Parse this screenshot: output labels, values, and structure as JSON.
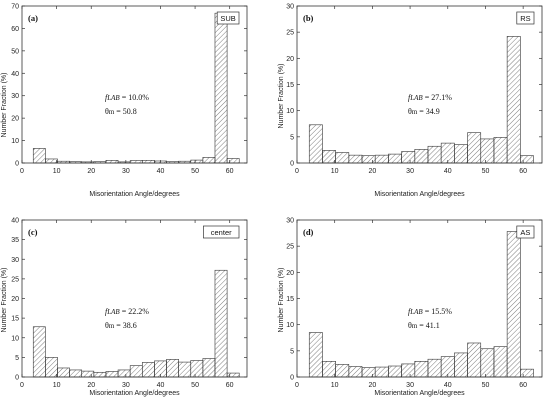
{
  "chart_data": [
    {
      "type": "bar",
      "panel_label": "(a)",
      "condition": "SUB",
      "xlabel": "Misorientation Angle/degrees",
      "ylabel": "Number Fraction (%)",
      "xlim": [
        0,
        65
      ],
      "ylim": [
        0,
        70
      ],
      "xticks": [
        0,
        10,
        20,
        30,
        40,
        50,
        60
      ],
      "yticks": [
        0,
        10,
        20,
        30,
        40,
        50,
        60,
        70
      ],
      "bin_width": 3.5,
      "x": [
        5,
        8.5,
        12,
        15.5,
        19,
        22.5,
        26,
        29.5,
        33,
        36.5,
        40,
        43.5,
        47,
        50.5,
        54,
        57.5,
        61
      ],
      "values": [
        6.5,
        1.8,
        0.8,
        0.6,
        0.5,
        0.6,
        1.2,
        0.5,
        1.1,
        1.2,
        0.9,
        0.6,
        0.8,
        1.3,
        2.5,
        66.8,
        2.0
      ],
      "annotation": {
        "f_label": "f",
        "f_sub": "LAB",
        "f_value": " = 10.0%",
        "theta_label": "θ",
        "theta_sub": "m",
        "theta_value": " = 50.8"
      }
    },
    {
      "type": "bar",
      "panel_label": "(b)",
      "condition": "RS",
      "xlabel": "Misorientation Angle/degrees",
      "ylabel": "Number Fraction (%)",
      "xlim": [
        0,
        65
      ],
      "ylim": [
        0,
        30
      ],
      "xticks": [
        0,
        10,
        20,
        30,
        40,
        50,
        60
      ],
      "yticks": [
        0,
        5,
        10,
        15,
        20,
        25,
        30
      ],
      "bin_width": 3.5,
      "x": [
        5,
        8.5,
        12,
        15.5,
        19,
        22.5,
        26,
        29.5,
        33,
        36.5,
        40,
        43.5,
        47,
        50.5,
        54,
        57.5,
        61
      ],
      "values": [
        7.3,
        2.4,
        2.0,
        1.5,
        1.4,
        1.5,
        1.7,
        2.2,
        2.6,
        3.2,
        3.8,
        3.5,
        5.8,
        4.6,
        4.9,
        24.2,
        1.4
      ],
      "annotation": {
        "f_label": "f",
        "f_sub": "LAB",
        "f_value": " = 27.1%",
        "theta_label": "θ",
        "theta_sub": "m",
        "theta_value": " = 34.9"
      }
    },
    {
      "type": "bar",
      "panel_label": "(c)",
      "condition": "center",
      "xlabel": "Misorientation Angle/degrees",
      "ylabel": "Number Fraction (%)",
      "xlim": [
        0,
        65
      ],
      "ylim": [
        0,
        40
      ],
      "xticks": [
        0,
        10,
        20,
        30,
        40,
        50,
        60
      ],
      "yticks": [
        0,
        5,
        10,
        15,
        20,
        25,
        30,
        35,
        40
      ],
      "bin_width": 3.5,
      "x": [
        5,
        8.5,
        12,
        15.5,
        19,
        22.5,
        26,
        29.5,
        33,
        36.5,
        40,
        43.5,
        47,
        50.5,
        54,
        57.5,
        61
      ],
      "values": [
        12.8,
        5.0,
        2.3,
        1.8,
        1.5,
        1.2,
        1.4,
        1.8,
        2.9,
        3.7,
        4.1,
        4.5,
        3.8,
        4.2,
        4.7,
        27.2,
        1.0
      ],
      "annotation": {
        "f_label": "f",
        "f_sub": "LAB",
        "f_value": " = 22.2%",
        "theta_label": "θ",
        "theta_sub": "m",
        "theta_value": " = 38.6"
      }
    },
    {
      "type": "bar",
      "panel_label": "(d)",
      "condition": "AS",
      "xlabel": "Misorientation Angle/degrees",
      "ylabel": "Number Fraction (%)",
      "xlim": [
        0,
        65
      ],
      "ylim": [
        0,
        30
      ],
      "xticks": [
        0,
        10,
        20,
        30,
        40,
        50,
        60
      ],
      "yticks": [
        0,
        5,
        10,
        15,
        20,
        25,
        30
      ],
      "bin_width": 3.5,
      "x": [
        5,
        8.5,
        12,
        15.5,
        19,
        22.5,
        26,
        29.5,
        33,
        36.5,
        40,
        43.5,
        47,
        50.5,
        54,
        57.5,
        61
      ],
      "values": [
        8.5,
        3.0,
        2.4,
        2.0,
        1.8,
        1.9,
        2.1,
        2.5,
        3.0,
        3.4,
        3.9,
        4.6,
        6.5,
        5.4,
        5.8,
        27.8,
        1.5
      ],
      "annotation": {
        "f_label": "f",
        "f_sub": "LAB",
        "f_value": " = 15.5%",
        "theta_label": "θ",
        "theta_sub": "m",
        "theta_value": " = 41.1"
      }
    }
  ]
}
